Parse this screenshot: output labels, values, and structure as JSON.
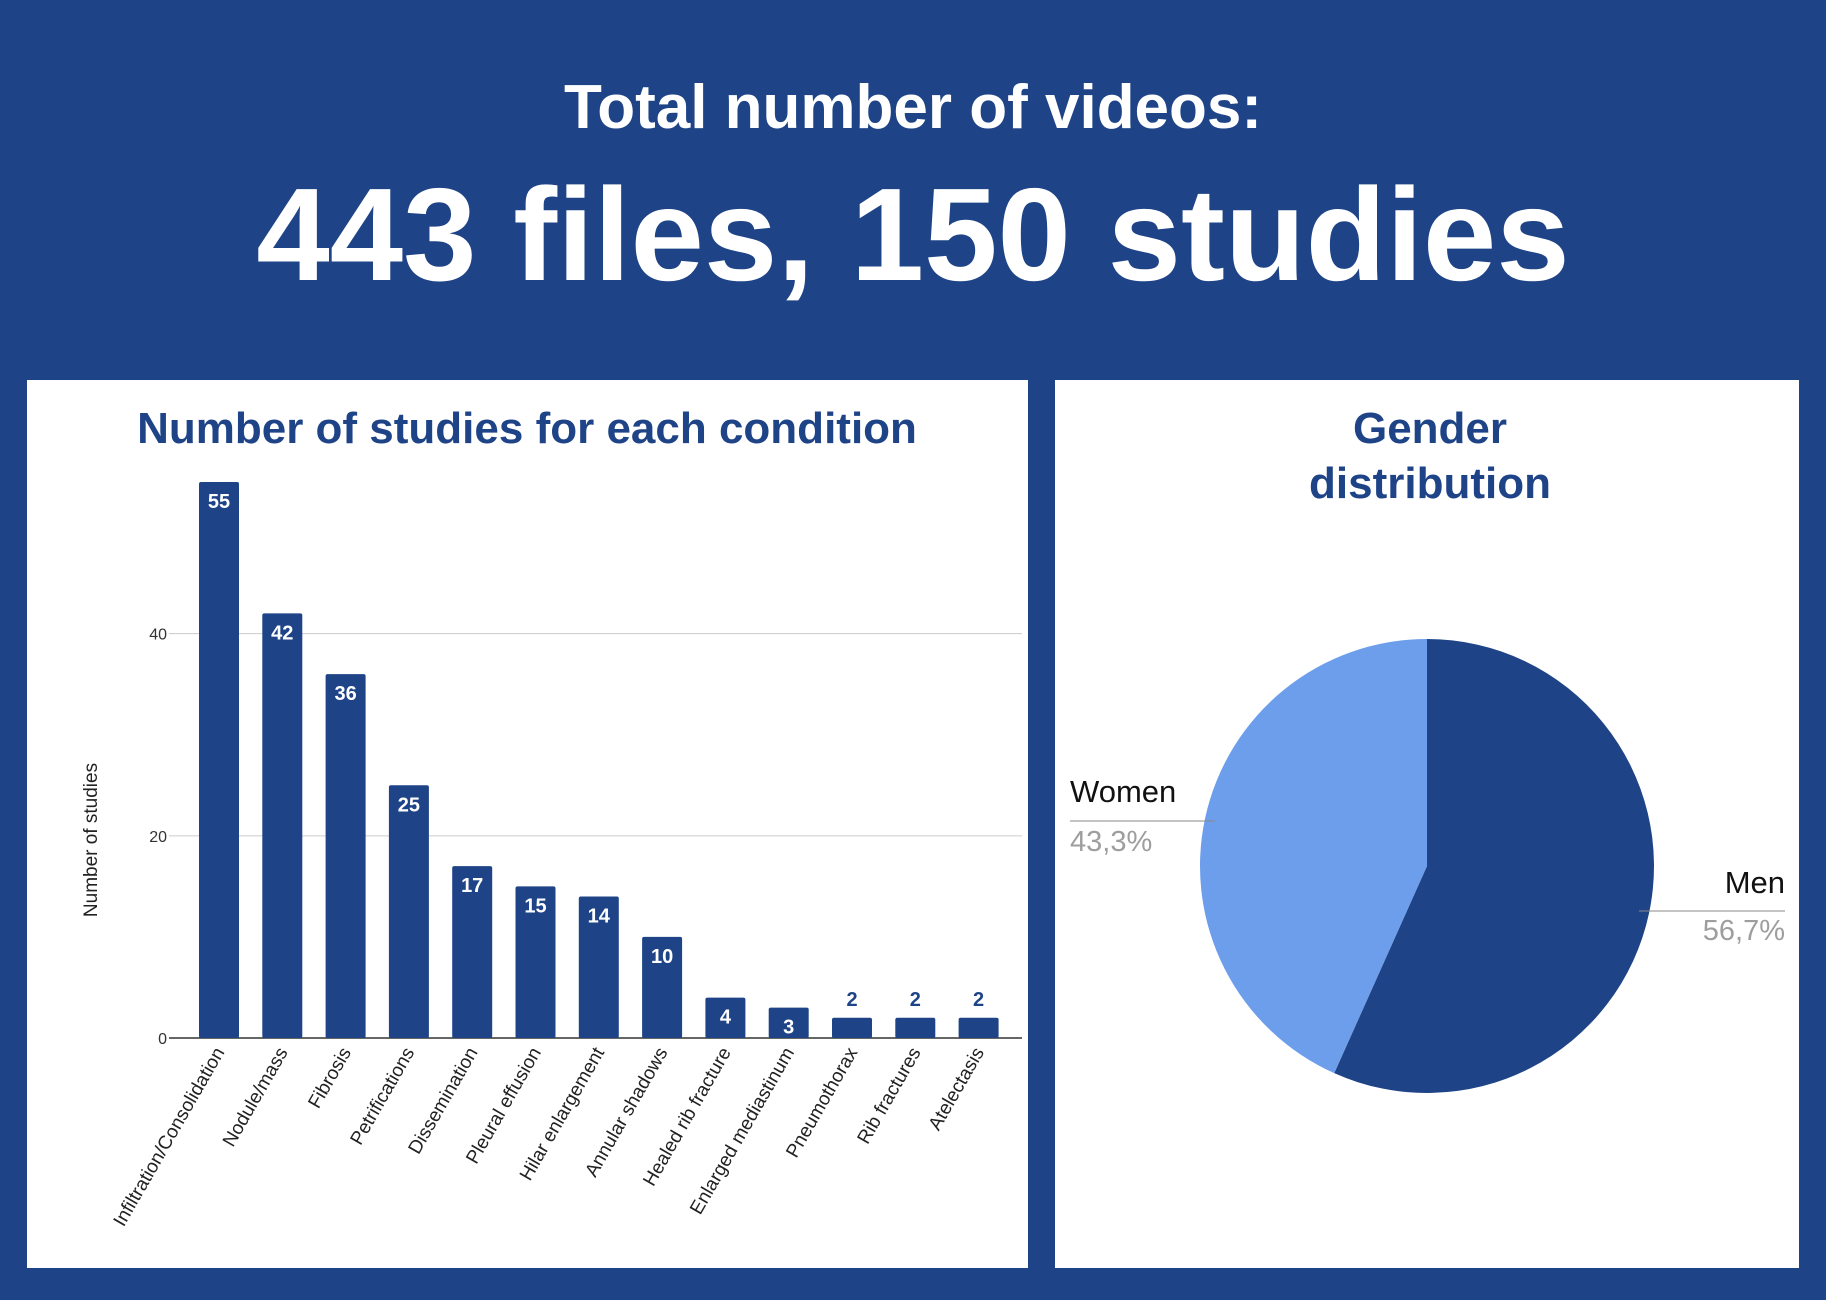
{
  "header": {
    "subtitle": "Total number of videos:",
    "title": "443 files, 150 studies"
  },
  "colors": {
    "background": "#1e4487",
    "bar": "#1e4487",
    "title_text": "#1e4487",
    "pie_men": "#1e4487",
    "pie_women": "#6d9eeb",
    "gridline": "#cccccc",
    "percent_label": "#9e9e9e"
  },
  "chart_data": [
    {
      "type": "bar",
      "title": "Number of studies for each condition",
      "ylabel": "Number of studies",
      "xlabel": "",
      "categories": [
        "Infiltration/Consolidation",
        "Nodule/mass",
        "Fibrosis",
        "Petrifications",
        "Dissemination",
        "Pleural effusion",
        "Hilar enlargement",
        "Annular shadows",
        "Healed rib fracture",
        "Enlarged mediastinum",
        "Pneumothorax",
        "Rib fractures",
        "Atelectasis"
      ],
      "values": [
        55,
        42,
        36,
        25,
        17,
        15,
        14,
        10,
        4,
        3,
        2,
        2,
        2
      ],
      "ylim": [
        0,
        55
      ],
      "yticks": [
        0,
        20,
        40
      ],
      "grid": true,
      "data_labels": true
    },
    {
      "type": "pie",
      "title": "Gender distribution",
      "labels": [
        "Men",
        "Women"
      ],
      "values": [
        56.7,
        43.3
      ],
      "value_labels": [
        "56,7%",
        "43,3%"
      ]
    }
  ]
}
